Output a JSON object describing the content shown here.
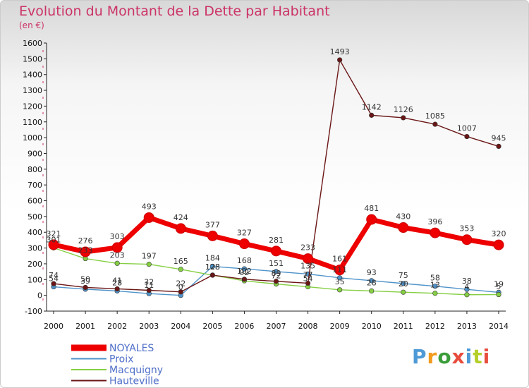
{
  "title": "Evolution du Montant de la Dette par Habitant",
  "subtitle": "(en €)",
  "logo": {
    "text": "Proxiti",
    "colors": [
      "#4e9ad6",
      "#f29b1d",
      "#3a9d3a",
      "#e84c3d",
      "#4e9ad6",
      "#b5cf2a",
      "#e84c3d"
    ]
  },
  "chart_data": {
    "type": "line",
    "title": "Evolution du Montant de la Dette par Habitant",
    "subtitle": "(en €)",
    "xlabel": "",
    "ylabel": "",
    "x": [
      2000,
      2001,
      2002,
      2003,
      2004,
      2005,
      2006,
      2007,
      2008,
      2009,
      2010,
      2011,
      2012,
      2013,
      2014
    ],
    "ylim": [
      -100,
      1600
    ],
    "yticks": [
      -100,
      0,
      100,
      200,
      300,
      400,
      500,
      600,
      700,
      800,
      900,
      1000,
      1100,
      1200,
      1300,
      1400,
      1500,
      1600
    ],
    "grid": false,
    "legend_position": "bottom-left",
    "series": [
      {
        "name": "NOYALES",
        "color": "#ee0000",
        "values": [
          321,
          276,
          303,
          493,
          424,
          377,
          327,
          281,
          233,
          161,
          481,
          430,
          396,
          353,
          320
        ]
      },
      {
        "name": "Proix",
        "color": "#4f93c9",
        "values": [
          54,
          39,
          28,
          11,
          0,
          184,
          168,
          151,
          135,
          111,
          93,
          75,
          58,
          38,
          19
        ]
      },
      {
        "name": "Macquigny",
        "color": "#86cf44",
        "values": [
          301,
          233,
          203,
          197,
          165,
          128,
          92,
          72,
          54,
          35,
          28,
          20,
          13,
          4,
          5
        ]
      },
      {
        "name": "Hauteville",
        "color": "#6b1616",
        "values": [
          74,
          50,
          41,
          32,
          22,
          128,
          102,
          89,
          77,
          1493,
          1142,
          1126,
          1085,
          1007,
          945
        ]
      }
    ]
  }
}
